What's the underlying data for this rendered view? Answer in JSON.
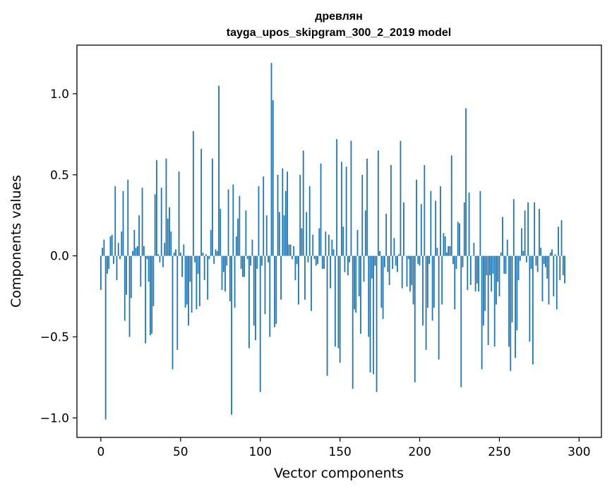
{
  "chart_data": {
    "type": "bar",
    "title": "древлян",
    "subtitle": "tayga_upos_skipgram_300_2_2019 model",
    "xlabel": "Vector components",
    "ylabel": "Components values",
    "xlim": [
      -15,
      314
    ],
    "ylim": [
      -1.12,
      1.3
    ],
    "xticks": [
      0,
      50,
      100,
      150,
      200,
      250,
      300
    ],
    "xtick_labels": [
      "0",
      "50",
      "100",
      "150",
      "200",
      "250",
      "300"
    ],
    "yticks": [
      -1.0,
      -0.5,
      0.0,
      0.5,
      1.0
    ],
    "ytick_labels": [
      "−1.0",
      "−0.5",
      "0.0",
      "0.5",
      "1.0"
    ],
    "grid": false,
    "bar_color": "#1f77b4",
    "values": [
      -0.21,
      0.05,
      0.1,
      -1.01,
      -0.11,
      -0.08,
      0.12,
      0.13,
      -0.05,
      0.43,
      -0.15,
      0.08,
      -0.02,
      0.15,
      0.4,
      -0.4,
      -0.24,
      0.47,
      -0.5,
      -0.26,
      0.03,
      0.16,
      0.05,
      0.06,
      0.25,
      -0.19,
      0.42,
      0.06,
      -0.54,
      -0.02,
      -0.16,
      -0.49,
      -0.48,
      -0.31,
      0.38,
      0.59,
      0.01,
      -0.04,
      0.42,
      -0.07,
      0.08,
      0.6,
      0.23,
      0.3,
      0.15,
      -0.7,
      0.02,
      0.04,
      -0.58,
      0.52,
      0.02,
      -0.13,
      0.07,
      -0.32,
      -0.3,
      -0.43,
      -0.16,
      -0.35,
      0.77,
      -0.04,
      -0.33,
      -0.11,
      -0.31,
      0.66,
      0.02,
      -0.15,
      0.01,
      -0.27,
      -0.02,
      0.16,
      0.6,
      -0.05,
      0.04,
      0.03,
      1.05,
      0.29,
      -0.21,
      -0.1,
      -0.22,
      -0.06,
      0.41,
      -0.28,
      -0.98,
      0.44,
      -0.32,
      0.12,
      0.23,
      0.37,
      -0.08,
      -0.13,
      -0.13,
      0.28,
      -0.02,
      -0.57,
      -0.06,
      0.1,
      -0.43,
      -0.52,
      -0.08,
      0.43,
      -0.84,
      -0.06,
      0.49,
      -0.36,
      0.25,
      -0.04,
      -0.5,
      1.19,
      0.96,
      -0.44,
      -0.42,
      0.5,
      0.27,
      -0.27,
      0.54,
      0.25,
      0.4,
      0.52,
      0.07,
      0.07,
      -0.02,
      0.06,
      -0.15,
      -0.05,
      -0.3,
      0.5,
      0.17,
      0.65,
      -0.27,
      0.27,
      -0.04,
      0.43,
      -0.34,
      0.13,
      -0.02,
      -0.06,
      -0.05,
      0.17,
      0.57,
      -0.08,
      -0.08,
      0.15,
      -0.74,
      0.13,
      -0.2,
      0.1,
      0.04,
      -0.56,
      0.72,
      -0.57,
      -0.66,
      0.58,
      0.18,
      -0.1,
      0.55,
      -0.12,
      -0.04,
      0.71,
      -0.82,
      -0.33,
      -0.35,
      0.16,
      -0.25,
      -0.48,
      0.5,
      -0.16,
      0.28,
      0.6,
      -0.5,
      -0.72,
      -0.14,
      -0.73,
      -0.06,
      -0.84,
      0.65,
      0.03,
      -0.32,
      -0.39,
      -0.07,
      0.26,
      -0.1,
      -0.18,
      0.56,
      -0.08,
      0.11,
      -0.06,
      -0.1,
      0.01,
      0.71,
      -0.2,
      0.33,
      0.0,
      -0.19,
      -0.02,
      -0.22,
      -0.18,
      -0.3,
      -0.78,
      0.47,
      -0.05,
      -0.06,
      0.32,
      -0.43,
      0.56,
      -0.58,
      -0.32,
      -0.05,
      0.4,
      -0.4,
      -0.32,
      0.34,
      0.05,
      -0.64,
      0.43,
      -0.3,
      0.14,
      0.12,
      0.02,
      0.06,
      0.06,
      0.62,
      -0.05,
      -0.33,
      -0.08,
      0.21,
      0.2,
      -0.81,
      -0.07,
      0.33,
      0.91,
      -0.21,
      0.39,
      -0.18,
      0.0,
      0.08,
      -0.22,
      -0.17,
      -0.22,
      0.4,
      -0.7,
      -0.43,
      -0.34,
      -0.12,
      -0.55,
      -0.12,
      -0.22,
      -0.11,
      -0.56,
      -0.3,
      -0.16,
      -0.25,
      0.02,
      0.24,
      -0.11,
      -0.11,
      0.1,
      -0.56,
      -0.71,
      -0.41,
      0.35,
      -0.63,
      -0.46,
      -0.15,
      -0.03,
      0.17,
      0.03,
      0.28,
      -0.04,
      0.33,
      -0.53,
      -0.08,
      -0.67,
      0.33,
      -0.06,
      -0.1,
      0.29,
      0.05,
      -0.28,
      -0.05,
      -0.07,
      -0.14,
      -0.3,
      0.02,
      0.04,
      -0.25,
      0.01,
      -0.33,
      0.18,
      -0.15,
      0.22,
      -0.12,
      -0.17
    ]
  }
}
